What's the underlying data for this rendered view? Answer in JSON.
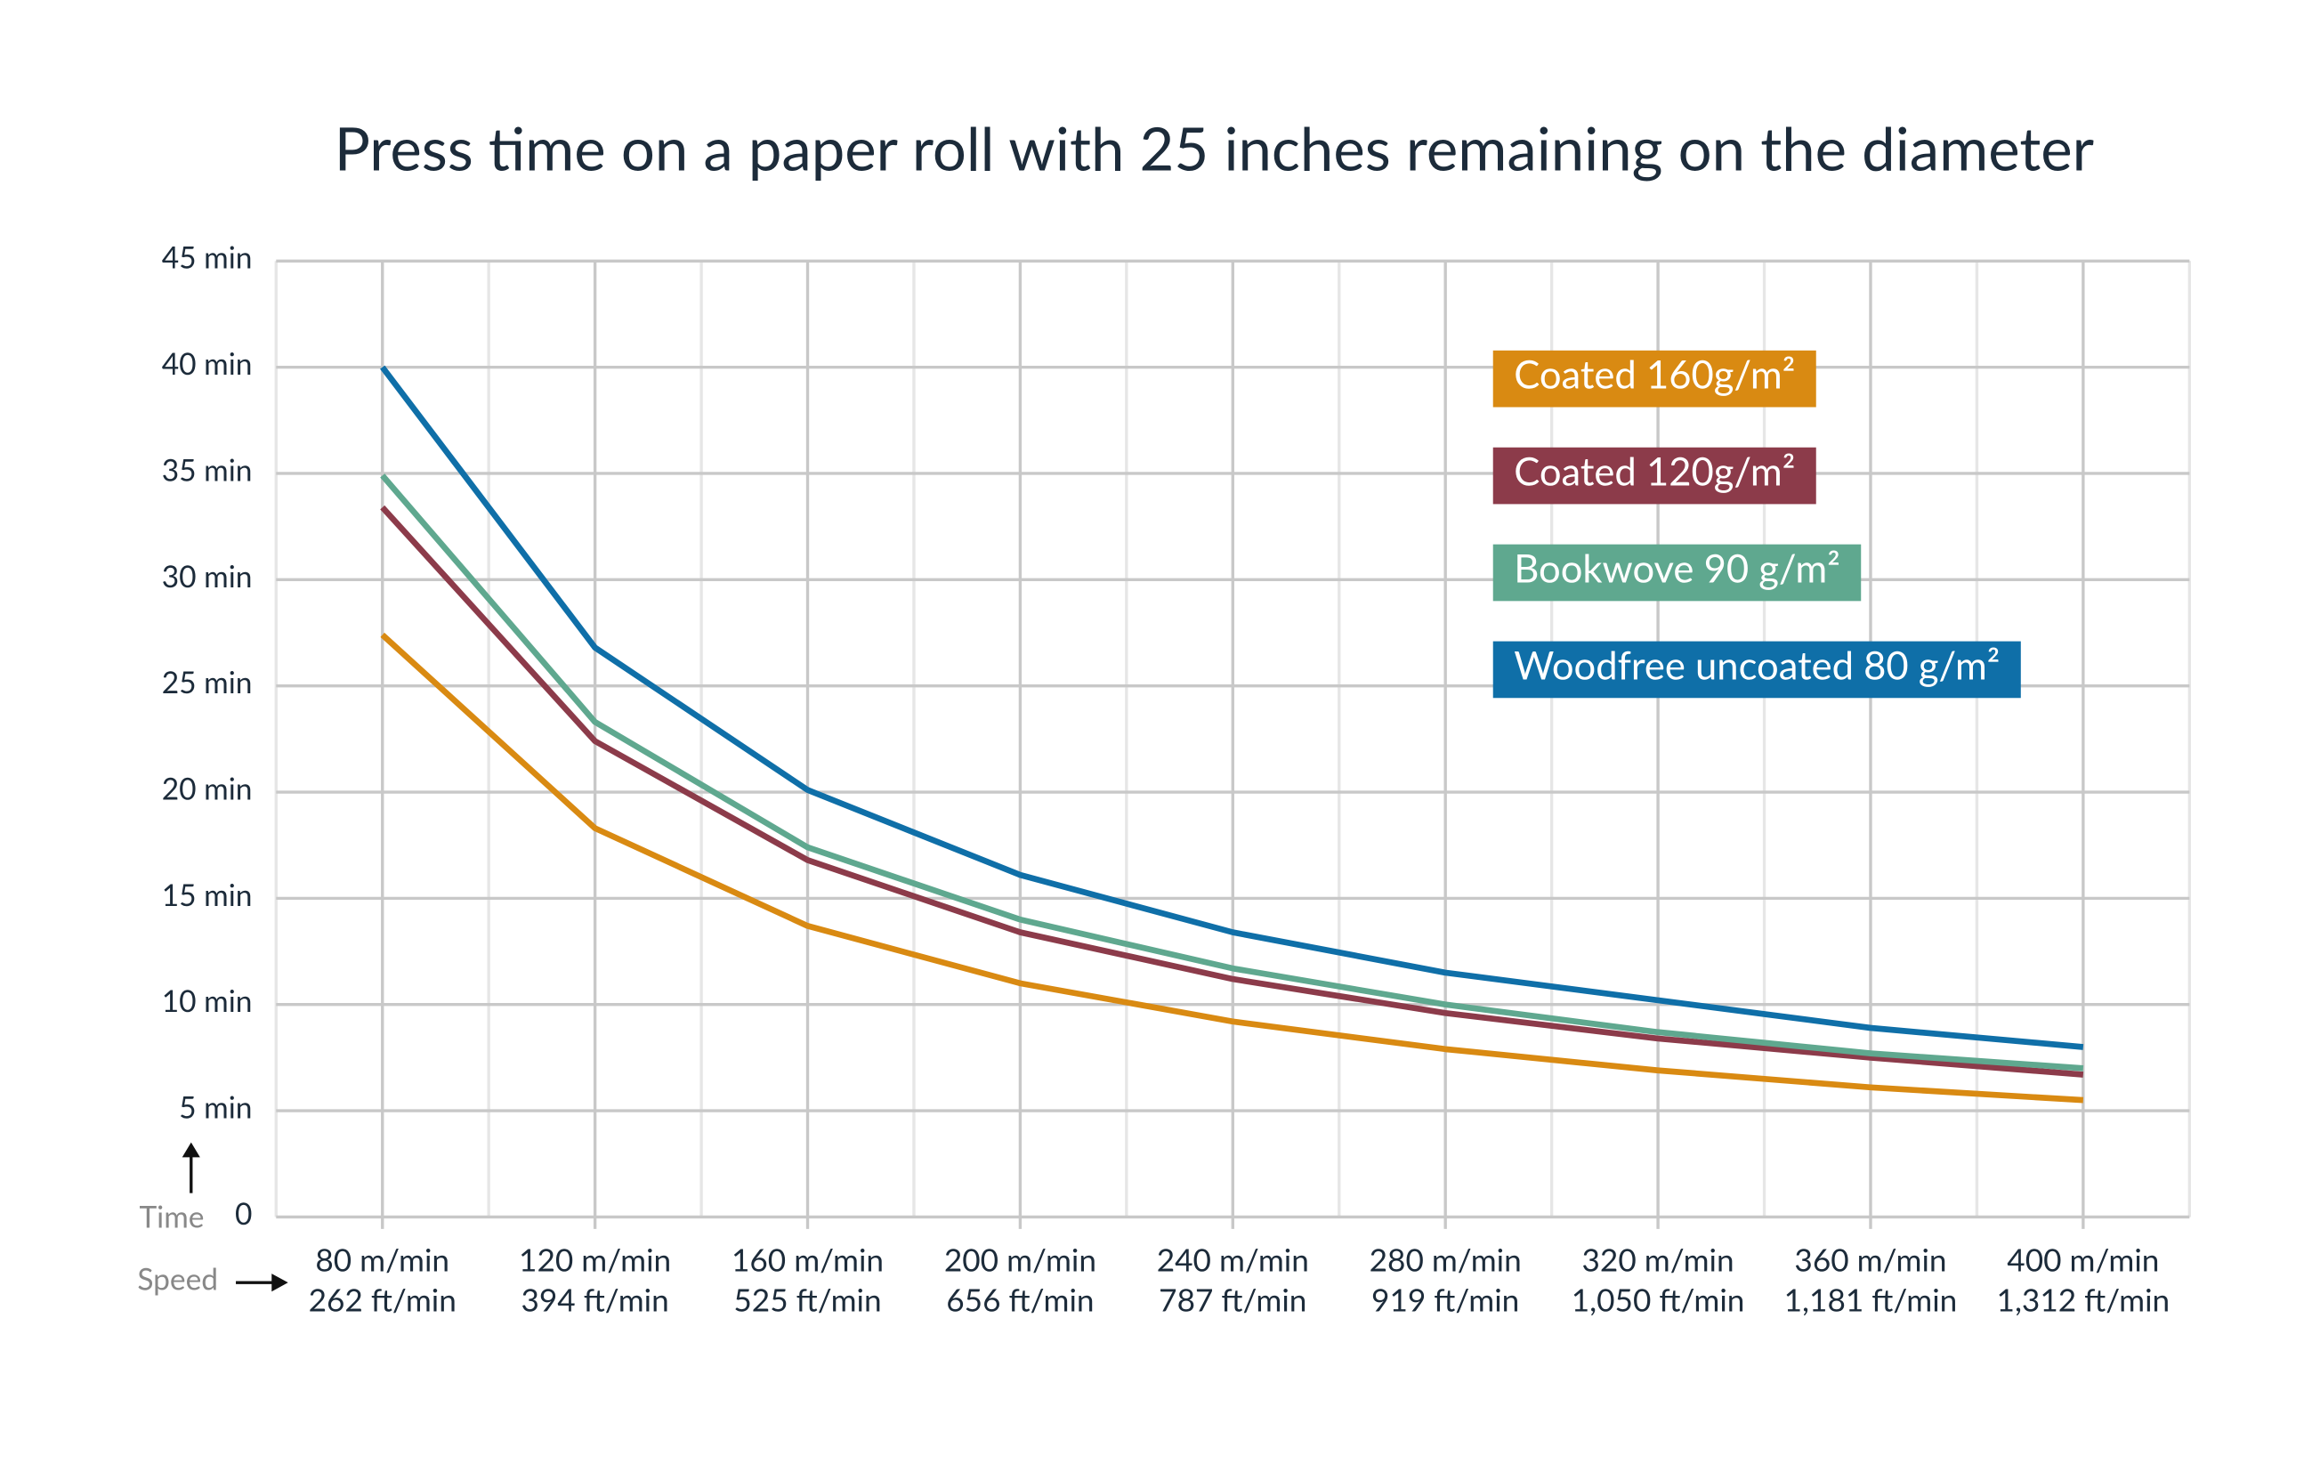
{
  "chart_data": {
    "type": "line",
    "title": "Press time on a paper roll with 25 inches remaining on the diameter",
    "y_label": "Time",
    "x_label": "Speed",
    "categories": [
      "80 m/min",
      "120 m/min",
      "160 m/min",
      "200 m/min",
      "240 m/min",
      "280 m/min",
      "320 m/min",
      "360 m/min",
      "400 m/min"
    ],
    "categories_secondary": [
      "262 ft/min",
      "394 ft/min",
      "525 ft/min",
      "656 ft/min",
      "787 ft/min",
      "919 ft/min",
      "1,050 ft/min",
      "1,181 ft/min",
      "1,312 ft/min"
    ],
    "ylim": [
      0,
      45
    ],
    "yticks": [
      0,
      {
        "value": 5,
        "label": "5 min"
      },
      {
        "value": 10,
        "label": "10 min"
      },
      {
        "value": 15,
        "label": "15 min"
      },
      {
        "value": 20,
        "label": "20 min"
      },
      {
        "value": 25,
        "label": "25 min"
      },
      {
        "value": 30,
        "label": "30 min"
      },
      {
        "value": 35,
        "label": "35 min"
      },
      {
        "value": 40,
        "label": "40 min"
      },
      {
        "value": 45,
        "label": "45 min"
      }
    ],
    "grid": true,
    "legend_position": "upper right",
    "series": [
      {
        "name": "Coated 160g/m²",
        "color": "#d98a12",
        "values": [
          27.4,
          18.3,
          13.7,
          11.0,
          9.2,
          7.9,
          6.9,
          6.1,
          5.5
        ]
      },
      {
        "name": "Coated 120g/m²",
        "color": "#8c3b4a",
        "values": [
          33.4,
          22.4,
          16.8,
          13.4,
          11.2,
          9.6,
          8.4,
          7.5,
          6.7
        ]
      },
      {
        "name": "Bookwove 90 g/m²",
        "color": "#5fa88f",
        "values": [
          34.9,
          23.3,
          17.4,
          14.0,
          11.7,
          10.0,
          8.7,
          7.7,
          7.0
        ]
      },
      {
        "name": "Woodfree uncoated 80 g/m²",
        "color": "#0f6fa8",
        "values": [
          40.0,
          26.8,
          20.1,
          16.1,
          13.4,
          11.5,
          10.2,
          8.9,
          8.0
        ]
      }
    ]
  }
}
